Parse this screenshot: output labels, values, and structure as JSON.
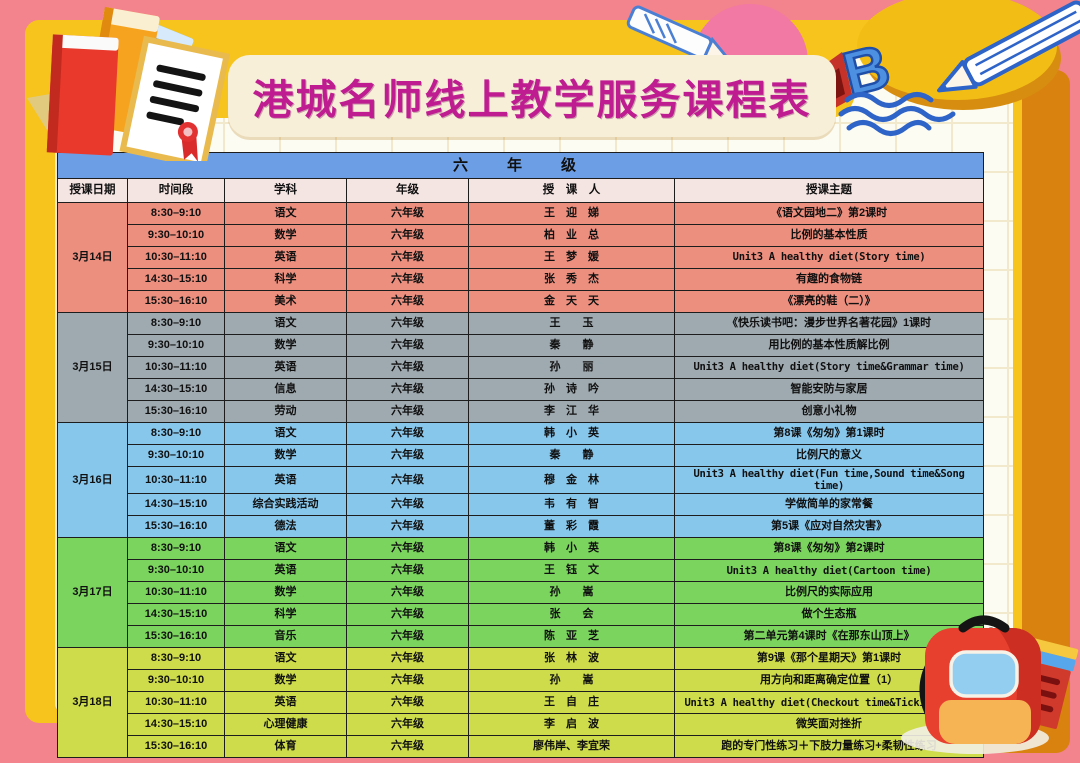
{
  "page": {
    "title": "港城名师线上教学服务课程表"
  },
  "decor": {
    "letter_b": "B",
    "icons": [
      "book-stack-icon",
      "certificate-icon",
      "pencil-icon",
      "letter-b-icon",
      "open-book-doodle-icon",
      "backpack-icon"
    ]
  },
  "colors": {
    "background_pink": "#F3838C",
    "card_yellow": "#F6C41C",
    "shadow_orange": "#D9820F",
    "banner_cream": "#F8EFD9",
    "title_magenta": "#BE1C90",
    "grade_header_blue": "#6B9EE5",
    "column_header_pink": "#F4E4E2"
  },
  "schedule": {
    "grade_header": "六　年　级",
    "columns": [
      "授课日期",
      "时间段",
      "学科",
      "年级",
      "授　课　人",
      "授课主题"
    ],
    "groups": [
      {
        "date": "3月14日",
        "color": "#EC8F7F",
        "rows": [
          {
            "time": "8:30–9:10",
            "subject": "语文",
            "grade": "六年级",
            "teacher": "王　迎　娣",
            "topic": "《语文园地二》第2课时"
          },
          {
            "time": "9:30–10:10",
            "subject": "数学",
            "grade": "六年级",
            "teacher": "柏　业　总",
            "topic": "比例的基本性质"
          },
          {
            "time": "10:30–11:10",
            "subject": "英语",
            "grade": "六年级",
            "teacher": "王　梦　媛",
            "topic": "Unit3 A healthy diet(Story time)"
          },
          {
            "time": "14:30–15:10",
            "subject": "科学",
            "grade": "六年级",
            "teacher": "张　秀　杰",
            "topic": "有趣的食物链"
          },
          {
            "time": "15:30–16:10",
            "subject": "美术",
            "grade": "六年级",
            "teacher": "金　天　天",
            "topic": "《漂亮的鞋（二）》"
          }
        ]
      },
      {
        "date": "3月15日",
        "color": "#9FAAB0",
        "rows": [
          {
            "time": "8:30–9:10",
            "subject": "语文",
            "grade": "六年级",
            "teacher": "王　　玉",
            "topic": "《快乐读书吧：漫步世界名著花园》1课时"
          },
          {
            "time": "9:30–10:10",
            "subject": "数学",
            "grade": "六年级",
            "teacher": "秦　　静",
            "topic": "用比例的基本性质解比例"
          },
          {
            "time": "10:30–11:10",
            "subject": "英语",
            "grade": "六年级",
            "teacher": "孙　　丽",
            "topic": "Unit3 A healthy diet(Story time&Grammar time)"
          },
          {
            "time": "14:30–15:10",
            "subject": "信息",
            "grade": "六年级",
            "teacher": "孙　诗　吟",
            "topic": "智能安防与家居"
          },
          {
            "time": "15:30–16:10",
            "subject": "劳动",
            "grade": "六年级",
            "teacher": "李　江　华",
            "topic": "创意小礼物"
          }
        ]
      },
      {
        "date": "3月16日",
        "color": "#87C7EC",
        "rows": [
          {
            "time": "8:30–9:10",
            "subject": "语文",
            "grade": "六年级",
            "teacher": "韩　小　英",
            "topic": "第8课《匆匆》第1课时"
          },
          {
            "time": "9:30–10:10",
            "subject": "数学",
            "grade": "六年级",
            "teacher": "秦　　静",
            "topic": "比例尺的意义"
          },
          {
            "time": "10:30–11:10",
            "subject": "英语",
            "grade": "六年级",
            "teacher": "穆　金　林",
            "topic": "Unit3 A healthy diet(Fun time,Sound time&Song time)"
          },
          {
            "time": "14:30–15:10",
            "subject": "综合实践活动",
            "grade": "六年级",
            "teacher": "韦　有　智",
            "topic": "学做简单的家常餐"
          },
          {
            "time": "15:30–16:10",
            "subject": "德法",
            "grade": "六年级",
            "teacher": "董　彩　霞",
            "topic": "第5课《应对自然灾害》"
          }
        ]
      },
      {
        "date": "3月17日",
        "color": "#7BD45E",
        "rows": [
          {
            "time": "8:30–9:10",
            "subject": "语文",
            "grade": "六年级",
            "teacher": "韩　小　英",
            "topic": "第8课《匆匆》第2课时"
          },
          {
            "time": "9:30–10:10",
            "subject": "英语",
            "grade": "六年级",
            "teacher": "王　钰　文",
            "topic": "Unit3 A healthy diet(Cartoon time)"
          },
          {
            "time": "10:30–11:10",
            "subject": "数学",
            "grade": "六年级",
            "teacher": "孙　　嵩",
            "topic": "比例尺的实际应用"
          },
          {
            "time": "14:30–15:10",
            "subject": "科学",
            "grade": "六年级",
            "teacher": "张　　会",
            "topic": "做个生态瓶"
          },
          {
            "time": "15:30–16:10",
            "subject": "音乐",
            "grade": "六年级",
            "teacher": "陈　亚　芝",
            "topic": "第二单元第4课时《在那东山顶上》"
          }
        ]
      },
      {
        "date": "3月18日",
        "color": "#CEDC4B",
        "rows": [
          {
            "time": "8:30–9:10",
            "subject": "语文",
            "grade": "六年级",
            "teacher": "张　林　波",
            "topic": "第9课《那个星期天》第1课时"
          },
          {
            "time": "9:30–10:10",
            "subject": "数学",
            "grade": "六年级",
            "teacher": "孙　　嵩",
            "topic": "用方向和距离确定位置（1）"
          },
          {
            "time": "10:30–11:10",
            "subject": "英语",
            "grade": "六年级",
            "teacher": "王　自　庄",
            "topic": "Unit3 A healthy diet(Checkout time&Ticking time)"
          },
          {
            "time": "14:30–15:10",
            "subject": "心理健康",
            "grade": "六年级",
            "teacher": "李　启　波",
            "topic": "微笑面对挫折"
          },
          {
            "time": "15:30–16:10",
            "subject": "体育",
            "grade": "六年级",
            "teacher": "廖伟岸、李宜荣",
            "topic": "跑的专门性练习＋下肢力量练习+柔韧性练习"
          }
        ]
      }
    ]
  }
}
